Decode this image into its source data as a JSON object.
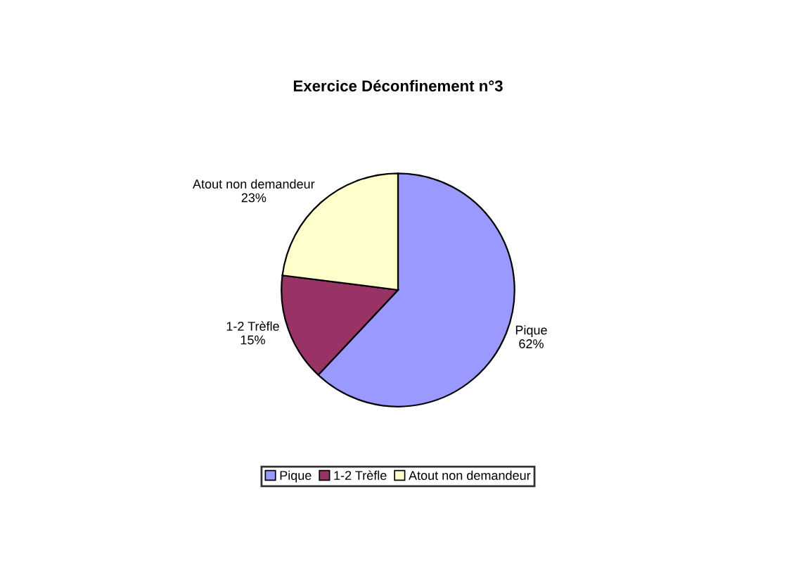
{
  "chart_data": {
    "type": "pie",
    "title": "Exercice Déconfinement n°3",
    "categories": [
      "Pique",
      "1-2 Trèfle",
      "Atout non demandeur"
    ],
    "values": [
      62,
      15,
      23
    ],
    "value_labels": [
      "62%",
      "15%",
      "23%"
    ],
    "colors": [
      "#9999ff",
      "#993366",
      "#ffffcc"
    ],
    "legend": "bottom"
  }
}
